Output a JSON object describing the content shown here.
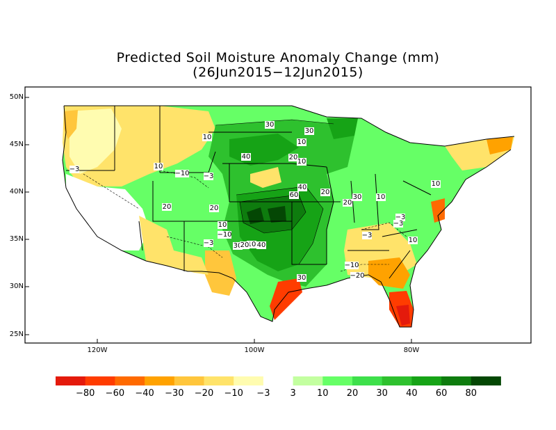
{
  "title": "Predicted Soil Moisture Anomaly Change (mm)",
  "subtitle": "(26Jun2015−12Jun2015)",
  "lat_labels": [
    "50N",
    "45N",
    "40N",
    "35N",
    "30N",
    "25N"
  ],
  "lon_labels": [
    "120W",
    "100W",
    "80W"
  ],
  "legend": {
    "colors": [
      "#e41a0c",
      "#ff3c00",
      "#ff6a00",
      "#ffa200",
      "#ffc63c",
      "#ffe36a",
      "#fffcb0",
      "#ffffff",
      "#c3ffa0",
      "#66ff66",
      "#3ee04b",
      "#2ec12e",
      "#16a316",
      "#0e7c0e",
      "#044704"
    ],
    "labels": [
      "−80",
      "−60",
      "−40",
      "−30",
      "−20",
      "−10",
      "−3",
      "3",
      "10",
      "20",
      "30",
      "40",
      "60",
      "80"
    ]
  },
  "contour_labels": [
    "30",
    "30",
    "10",
    "10",
    "20",
    "10",
    "40",
    "−10",
    "−3",
    "−3",
    "40",
    "60",
    "20",
    "10",
    "20",
    "20",
    "20",
    "30",
    "10",
    "10",
    "−3",
    "−3",
    "−3",
    "10",
    "−10",
    "10",
    "10",
    "−3",
    "30",
    "20",
    "40",
    "−10",
    "−20",
    "30"
  ]
}
